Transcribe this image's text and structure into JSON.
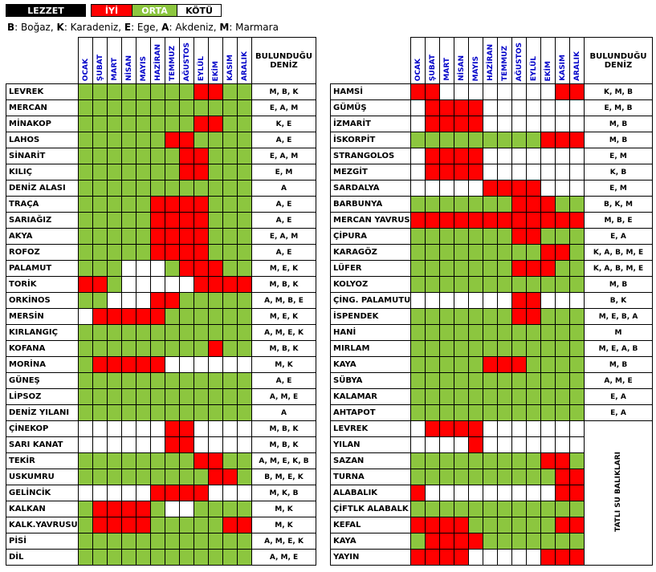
{
  "legend": {
    "title": "LEZZET",
    "good": "İYİ",
    "medium": "ORTA",
    "bad": "KÖTÜ",
    "good_color": "#ff0000",
    "medium_color": "#8cc63f",
    "bad_color": "#ffffff"
  },
  "abbreviations": [
    {
      "code": "B",
      "name": "Boğaz"
    },
    {
      "code": "K",
      "name": "Karadeniz"
    },
    {
      "code": "E",
      "name": "Ege"
    },
    {
      "code": "A",
      "name": "Akdeniz"
    },
    {
      "code": "M",
      "name": "Marmara"
    }
  ],
  "months": [
    "OCAK",
    "ŞUBAT",
    "MART",
    "NİSAN",
    "MAYIS",
    "HAZİRAN",
    "TEMMUZ",
    "AĞUSTOS",
    "EYLÜL",
    "EKİM",
    "KASIM",
    "ARALIK"
  ],
  "sea_header": "BULUNDUĞU DENİZ",
  "freshwater_label": "TATLI SU BALIKLARI",
  "left_table": [
    {
      "name": "LEVREK",
      "seas": "M, B, K",
      "cells": "GGGGGGGGRRGG"
    },
    {
      "name": "MERCAN",
      "seas": "E, A, M",
      "cells": "GGGGGGGGGGGG"
    },
    {
      "name": "MİNAKOP",
      "seas": "K, E",
      "cells": "GGGGGGGGRRGG"
    },
    {
      "name": "LAHOS",
      "seas": "A, E",
      "cells": "GGGGGGRRGGGG"
    },
    {
      "name": "SİNARİT",
      "seas": "E, A, M",
      "cells": "GGGGGGGRRGGG"
    },
    {
      "name": "KILIÇ",
      "seas": "E, M",
      "cells": "GGGGGGGRRGGG"
    },
    {
      "name": "DENİZ ALASI",
      "seas": "A",
      "cells": "GGGGGGGGGGGG"
    },
    {
      "name": "TRAÇA",
      "seas": "A, E",
      "cells": "GGGGGRRRRGGG"
    },
    {
      "name": "SARIAĞIZ",
      "seas": "A, E",
      "cells": "GGGGGRRRRGGG"
    },
    {
      "name": "AKYA",
      "seas": "E, A, M",
      "cells": "GGGGGRRRRGGG"
    },
    {
      "name": "ROFOZ",
      "seas": "A, E",
      "cells": "GGGGGRRRRGGG"
    },
    {
      "name": "PALAMUT",
      "seas": "M, E, K",
      "cells": "GGGWWWGRRRGG"
    },
    {
      "name": "TORİK",
      "seas": "M, B, K",
      "cells": "RRGWWWWWRRRR"
    },
    {
      "name": "ORKİNOS",
      "seas": "A, M, B, E",
      "cells": "GGWWWRRGGGGG"
    },
    {
      "name": "MERSİN",
      "seas": "M, E, K",
      "cells": "WRRRRRGGGGGG"
    },
    {
      "name": "KIRLANGIÇ",
      "seas": "A, M, E, K",
      "cells": "GGGGGGGGGGGG"
    },
    {
      "name": "KOFANA",
      "seas": "M, B, K",
      "cells": "GGGGGGGGGRGG"
    },
    {
      "name": "MORİNA",
      "seas": "M, K",
      "cells": "GRRRRRWWWWWW"
    },
    {
      "name": "GÜNEŞ",
      "seas": "A, E",
      "cells": "GGGGGGGGGGGG"
    },
    {
      "name": "LİPSOZ",
      "seas": "A, M, E",
      "cells": "GGGGGGGGGGGG"
    },
    {
      "name": "DENİZ YILANI",
      "seas": "A",
      "cells": "GGGGGGGGGGGG"
    },
    {
      "name": "ÇİNEKOP",
      "seas": "M, B, K",
      "cells": "WWWWWWRRWWWW"
    },
    {
      "name": "SARI KANAT",
      "seas": "M, B, K",
      "cells": "WWWWWWRRWWWW"
    },
    {
      "name": "TEKİR",
      "seas": "A, M, E, K, B",
      "cells": "GGGGGGGGRRGG"
    },
    {
      "name": "USKUMRU",
      "seas": "B, M, E, K",
      "cells": "GGGGGGGGGRRG"
    },
    {
      "name": "GELİNCİK",
      "seas": "M, K, B",
      "cells": "WWWWWRRRRWWW"
    },
    {
      "name": "KALKAN",
      "seas": "M, K",
      "cells": "GRRRRGWWGGGG"
    },
    {
      "name": "KALK.YAVRUSU",
      "seas": "M, K",
      "cells": "GRRRRGGGGGRR"
    },
    {
      "name": "PİSİ",
      "seas": "A, M, E, K",
      "cells": "GGGGGGGGGGGG"
    },
    {
      "name": "DİL",
      "seas": "A, M, E",
      "cells": "GGGGGGGGGGGG"
    }
  ],
  "right_table": [
    {
      "name": "HAMSİ",
      "seas": "K, M, B",
      "cells": "RRWWWWWWWWRR"
    },
    {
      "name": "GÜMÜŞ",
      "seas": "E, M, B",
      "cells": "WRRRRWWWWWWW"
    },
    {
      "name": "İZMARİT",
      "seas": "M, B",
      "cells": "WRRRRWWWWWWW"
    },
    {
      "name": "İSKORPİT",
      "seas": "M, B",
      "cells": "GGGGGGGGGRRR"
    },
    {
      "name": "STRANGOLOS",
      "seas": "E, M",
      "cells": "WRRRRWWWWWWW"
    },
    {
      "name": "MEZGİT",
      "seas": "K, B",
      "cells": "WRRRRWWWWWWW"
    },
    {
      "name": "SARDALYA",
      "seas": "E, M",
      "cells": "WWWWWRRRRWWW"
    },
    {
      "name": "BARBUNYA",
      "seas": "B, K, M",
      "cells": "GGGGGGGRRRGG"
    },
    {
      "name": "MERCAN YAVRUSU",
      "seas": "M, B, E",
      "cells": "RRRRRRRRRRRR"
    },
    {
      "name": "ÇİPURA",
      "seas": "E, A",
      "cells": "GGGGGGGRRGGG"
    },
    {
      "name": "KARAGÖZ",
      "seas": "K, A, B, M, E",
      "cells": "GGGGGGGGGRRG"
    },
    {
      "name": "LÜFER",
      "seas": "K, A, B, M, E",
      "cells": "GGGGGGGRRRGG"
    },
    {
      "name": "KOLYOZ",
      "seas": "M, B",
      "cells": "GGGGGGGGGGGG"
    },
    {
      "name": "ÇİNG. PALAMUTU",
      "seas": "B, K",
      "cells": "WWWWWWWRRWWW"
    },
    {
      "name": "İSPENDEK",
      "seas": "M, E, B, A",
      "cells": "GGGGGGGRRGGG"
    },
    {
      "name": "HANİ",
      "seas": "M",
      "cells": "GGGGGGGGGGGG"
    },
    {
      "name": "MIRLAM",
      "seas": "M, E, A, B",
      "cells": "GGGGGGGGGGGG"
    },
    {
      "name": "KAYA",
      "seas": "M, B",
      "cells": "GGGGGRRRGGGG"
    },
    {
      "name": "SÜBYA",
      "seas": "A, M, E",
      "cells": "GGGGGGGGGGGG"
    },
    {
      "name": "KALAMAR",
      "seas": "E, A",
      "cells": "GGGGGGGGGGGG"
    },
    {
      "name": "AHTAPOT",
      "seas": "E, A",
      "cells": "GGGGGGGGGGGG"
    },
    {
      "name": "LEVREK",
      "seas": "",
      "cells": "WRRRRWWWWWWW"
    },
    {
      "name": "YILAN",
      "seas": "",
      "cells": "WWWWRWWWWWWW"
    },
    {
      "name": "SAZAN",
      "seas": "",
      "cells": "GGGGGGGGGRRG"
    },
    {
      "name": "TURNA",
      "seas": "",
      "cells": "GGGGGGGGGGRR"
    },
    {
      "name": "ALABALIK",
      "seas": "",
      "cells": "RWWWWWWWWWRR"
    },
    {
      "name": "ÇİFTLK ALABALK",
      "seas": "",
      "cells": "GGGGGGGGGGGG"
    },
    {
      "name": "KEFAL",
      "seas": "",
      "cells": "RRRRGGGGGGRR"
    },
    {
      "name": "KAYA",
      "seas": "",
      "cells": "GRRRRGGGGGGG"
    },
    {
      "name": "YAYIN",
      "seas": "",
      "cells": "RRRRWWWWWRRR"
    }
  ]
}
